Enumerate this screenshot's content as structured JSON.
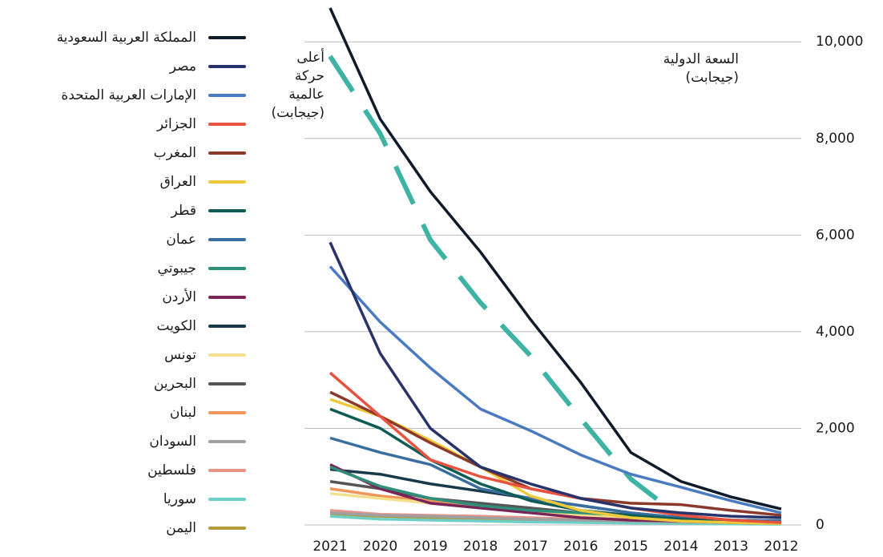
{
  "chart_data": {
    "type": "line",
    "categories": [
      "2021",
      "2020",
      "2019",
      "2018",
      "2017",
      "2016",
      "2015",
      "2014",
      "2013",
      "2012"
    ],
    "annotations": [
      {
        "lines": [
          "أعلى",
          "حركة",
          "عالمية",
          "(جيجابت)"
        ]
      },
      {
        "lines": [
          "السعة الدولية",
          "(جيجابت)"
        ]
      }
    ],
    "ylim": [
      0,
      10800
    ],
    "yticks": [
      0,
      {
        "value": 2000,
        "label": "2,000"
      },
      {
        "value": 4000,
        "label": "4,000"
      },
      {
        "value": 6000,
        "label": "6,000"
      },
      {
        "value": 8000,
        "label": "8,000"
      },
      {
        "value": 10000,
        "label": "10,000"
      }
    ],
    "grid": true,
    "legend": "left",
    "series": [
      {
        "name": "المملكة العربية السعودية",
        "color": "#0f1a2a",
        "values": [
          10700,
          8400,
          6900,
          5650,
          4250,
          2950,
          1500,
          900,
          580,
          330
        ]
      },
      {
        "name": "مصر",
        "color": "#27336b",
        "values": [
          5850,
          3550,
          2000,
          1200,
          850,
          550,
          350,
          250,
          180,
          150
        ]
      },
      {
        "name": "الإمارات العربية المتحدة",
        "color": "#4a7bc0",
        "values": [
          5350,
          4200,
          3250,
          2400,
          1950,
          1450,
          1050,
          780,
          500,
          250
        ]
      },
      {
        "name": "الجزائر",
        "color": "#e8533f",
        "values": [
          3150,
          2250,
          1350,
          1000,
          750,
          550,
          350,
          200,
          100,
          50
        ]
      },
      {
        "name": "المغرب",
        "color": "#8b3a2a",
        "values": [
          2750,
          2250,
          1700,
          1200,
          750,
          550,
          450,
          420,
          300,
          200
        ]
      },
      {
        "name": "العراق",
        "color": "#f0c93b",
        "values": [
          2600,
          2250,
          1750,
          1200,
          600,
          300,
          150,
          80,
          50,
          30
        ]
      },
      {
        "name": "قطر",
        "color": "#0f5c56",
        "values": [
          2400,
          2000,
          1350,
          850,
          500,
          300,
          200,
          120,
          80,
          50
        ]
      },
      {
        "name": "عمان",
        "color": "#3a6ea0",
        "values": [
          1800,
          1500,
          1250,
          750,
          550,
          400,
          250,
          150,
          100,
          80
        ]
      },
      {
        "name": "جيبوتي",
        "color": "#2e8f7a",
        "values": [
          1200,
          800,
          550,
          400,
          300,
          250,
          200,
          150,
          100,
          80
        ]
      },
      {
        "name": "الأردن",
        "color": "#7a2558",
        "values": [
          1250,
          750,
          450,
          350,
          250,
          150,
          100,
          80,
          50,
          30
        ]
      },
      {
        "name": "الكويت",
        "color": "#163a4a",
        "values": [
          1150,
          1050,
          850,
          700,
          550,
          400,
          250,
          150,
          100,
          80
        ]
      },
      {
        "name": "تونس",
        "color": "#f3df8e",
        "values": [
          650,
          550,
          450,
          350,
          280,
          200,
          150,
          100,
          80,
          50
        ]
      },
      {
        "name": "البحرين",
        "color": "#555555",
        "values": [
          900,
          750,
          550,
          450,
          350,
          250,
          150,
          100,
          60,
          40
        ]
      },
      {
        "name": "لبنان",
        "color": "#f0965a",
        "values": [
          750,
          600,
          500,
          400,
          300,
          200,
          120,
          80,
          50,
          30
        ]
      },
      {
        "name": "السودان",
        "color": "#a0a0a0",
        "values": [
          250,
          200,
          180,
          150,
          120,
          100,
          80,
          60,
          50,
          40
        ]
      },
      {
        "name": "فلسطين",
        "color": "#e8938a",
        "values": [
          300,
          220,
          200,
          180,
          150,
          120,
          100,
          80,
          60,
          40
        ]
      },
      {
        "name": "سوريا",
        "color": "#6ecfc6",
        "values": [
          180,
          120,
          100,
          80,
          60,
          50,
          40,
          30,
          20,
          15
        ]
      },
      {
        "name": "اليمن",
        "color": "#b39a3a",
        "values": [
          200,
          180,
          150,
          120,
          100,
          80,
          60,
          40,
          30,
          20
        ]
      },
      {
        "name": "أعلى حركة عالمية",
        "color": "#3fb3a3",
        "dashed": true,
        "legend": false,
        "values": [
          9700,
          8100,
          5900,
          4600,
          3500,
          2200,
          950,
          150,
          null,
          null
        ]
      }
    ]
  }
}
